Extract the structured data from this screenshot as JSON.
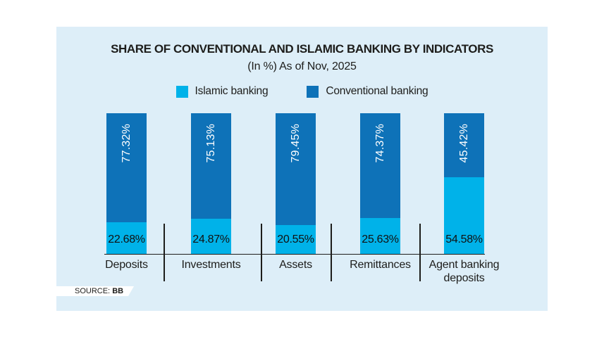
{
  "card": {
    "title": "SHARE OF CONVENTIONAL AND ISLAMIC BANKING BY INDICATORS",
    "subtitle": "(In %) As of Nov, 2025",
    "source_label": "SOURCE:",
    "source_value": "BB"
  },
  "legend": [
    {
      "label": "Islamic banking",
      "color": "#00b2e9"
    },
    {
      "label": "Conventional banking",
      "color": "#0e72b8"
    }
  ],
  "colors": {
    "card_background": "#ddeef8",
    "islamic": "#00b2e9",
    "conventional": "#0e72b8",
    "ink": "#1d1d1b",
    "value_label_on_dark": "#ffffff"
  },
  "chart_data": {
    "type": "bar",
    "stacked": true,
    "orientation": "vertical",
    "title": "SHARE OF CONVENTIONAL AND ISLAMIC BANKING BY INDICATORS",
    "subtitle": "(In %) As of Nov, 2025",
    "categories": [
      "Deposits",
      "Investments",
      "Assets",
      "Remittances",
      "Agent banking deposits"
    ],
    "series": [
      {
        "name": "Islamic banking",
        "color": "#00b2e9",
        "values": [
          22.68,
          24.87,
          20.55,
          25.63,
          54.58
        ]
      },
      {
        "name": "Conventional banking",
        "color": "#0e72b8",
        "values": [
          77.32,
          75.13,
          79.45,
          74.37,
          45.42
        ]
      }
    ],
    "value_label_format": "0.00%",
    "ylim": [
      0,
      100
    ],
    "grid": false,
    "legend_position": "top",
    "source": "BB"
  }
}
